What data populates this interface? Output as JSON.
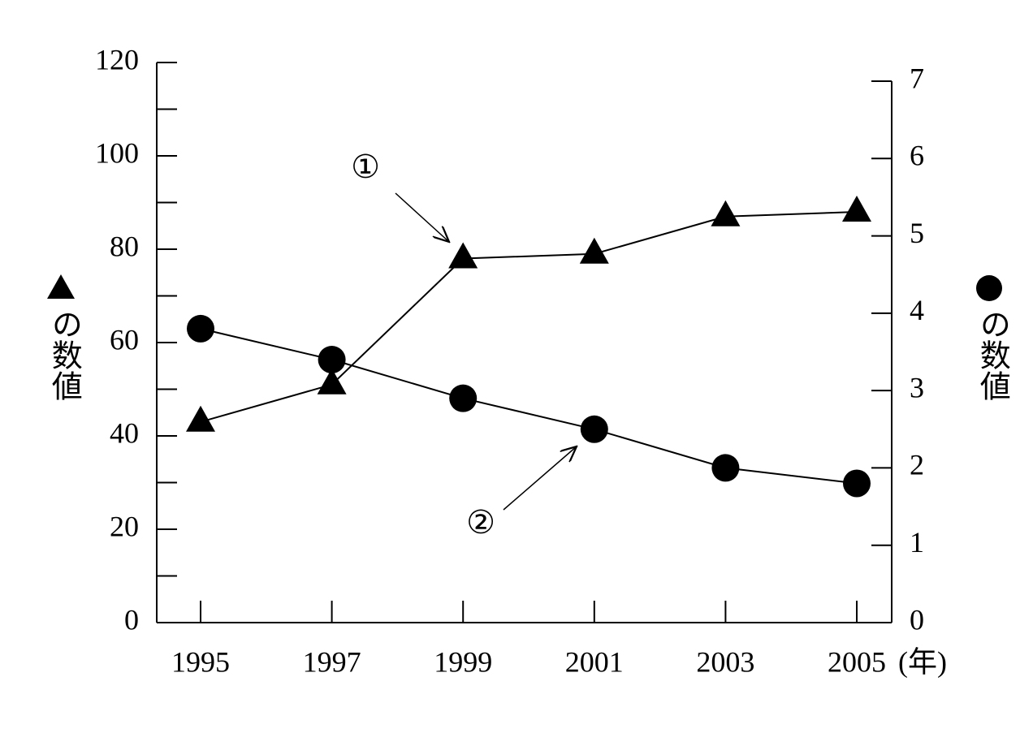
{
  "chart_data": {
    "type": "line",
    "categories": [
      "1995",
      "1997",
      "1999",
      "2001",
      "2003",
      "2005"
    ],
    "x_unit": "(年)",
    "ylabel": "の数値",
    "y2label": "の数値",
    "ylim": [
      0,
      120
    ],
    "yticks": [
      0,
      20,
      40,
      60,
      80,
      100,
      120
    ],
    "yminorticks": [
      10,
      30,
      50,
      70,
      90,
      110
    ],
    "y2lim": [
      0,
      7
    ],
    "y2ticks": [
      0,
      1,
      2,
      3,
      4,
      5,
      6,
      7
    ],
    "series": [
      {
        "marker": "triangle",
        "color": "#000000",
        "values": [
          43,
          51,
          78,
          79,
          87,
          88
        ]
      },
      {
        "marker": "circle",
        "color": "#000000",
        "axis": "y2",
        "values": [
          3.8,
          3.4,
          2.9,
          2.5,
          2.0,
          1.8
        ]
      }
    ],
    "annotations": [
      {
        "text": "①",
        "series": 0,
        "point": 2
      },
      {
        "text": "②",
        "series": 1,
        "point": 3
      }
    ]
  }
}
